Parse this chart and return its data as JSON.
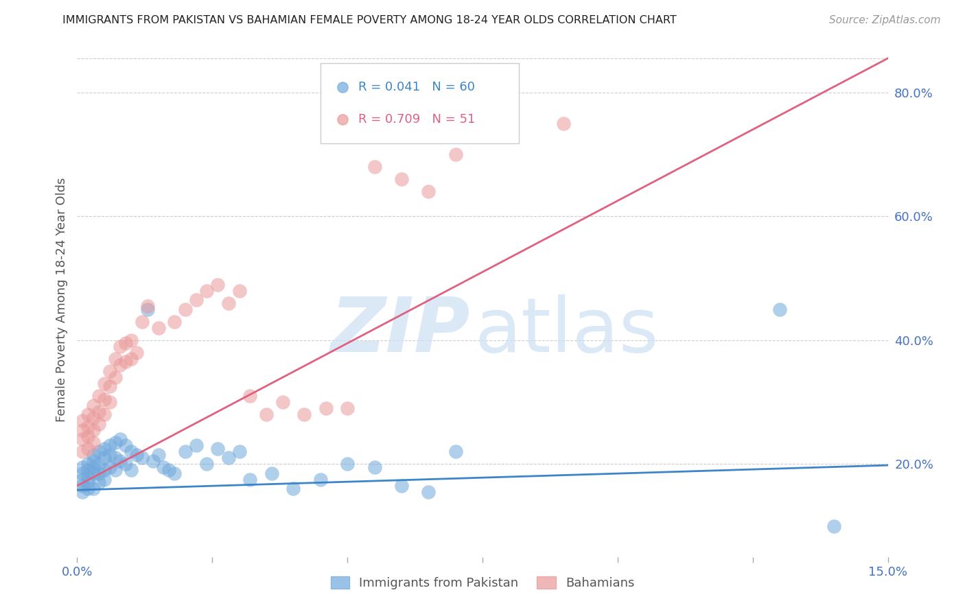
{
  "title": "IMMIGRANTS FROM PAKISTAN VS BAHAMIAN FEMALE POVERTY AMONG 18-24 YEAR OLDS CORRELATION CHART",
  "source": "Source: ZipAtlas.com",
  "ylabel": "Female Poverty Among 18-24 Year Olds",
  "xlabel_blue": "Immigrants from Pakistan",
  "xlabel_pink": "Bahamians",
  "y_ticks_right": [
    20.0,
    40.0,
    60.0,
    80.0
  ],
  "xlim": [
    0.0,
    0.15
  ],
  "ylim": [
    0.05,
    0.88
  ],
  "blue_R": 0.041,
  "blue_N": 60,
  "pink_R": 0.709,
  "pink_N": 51,
  "blue_color": "#6fa8dc",
  "pink_color": "#ea9999",
  "blue_line_color": "#3d85c8",
  "pink_line_color": "#e06080",
  "title_color": "#222222",
  "axis_label_color": "#555555",
  "tick_color": "#4472c4",
  "grid_color": "#cccccc",
  "blue_trend_x0": 0.0,
  "blue_trend_y0": 0.158,
  "blue_trend_x1": 0.15,
  "blue_trend_y1": 0.198,
  "pink_trend_x0": 0.0,
  "pink_trend_y0": 0.165,
  "pink_trend_x1": 0.15,
  "pink_trend_y1": 0.855,
  "blue_scatter_x": [
    0.001,
    0.001,
    0.001,
    0.001,
    0.001,
    0.002,
    0.002,
    0.002,
    0.002,
    0.002,
    0.003,
    0.003,
    0.003,
    0.003,
    0.003,
    0.004,
    0.004,
    0.004,
    0.004,
    0.005,
    0.005,
    0.005,
    0.005,
    0.006,
    0.006,
    0.006,
    0.007,
    0.007,
    0.007,
    0.008,
    0.008,
    0.009,
    0.009,
    0.01,
    0.01,
    0.011,
    0.012,
    0.013,
    0.014,
    0.015,
    0.016,
    0.017,
    0.018,
    0.02,
    0.022,
    0.024,
    0.026,
    0.028,
    0.03,
    0.032,
    0.036,
    0.04,
    0.045,
    0.05,
    0.055,
    0.06,
    0.065,
    0.07,
    0.13,
    0.14
  ],
  "blue_scatter_y": [
    0.195,
    0.185,
    0.175,
    0.165,
    0.155,
    0.2,
    0.19,
    0.18,
    0.17,
    0.16,
    0.215,
    0.205,
    0.195,
    0.185,
    0.16,
    0.22,
    0.2,
    0.185,
    0.17,
    0.225,
    0.21,
    0.19,
    0.175,
    0.23,
    0.215,
    0.195,
    0.235,
    0.21,
    0.19,
    0.24,
    0.205,
    0.23,
    0.2,
    0.22,
    0.19,
    0.215,
    0.21,
    0.45,
    0.205,
    0.215,
    0.195,
    0.19,
    0.185,
    0.22,
    0.23,
    0.2,
    0.225,
    0.21,
    0.22,
    0.175,
    0.185,
    0.16,
    0.175,
    0.2,
    0.195,
    0.165,
    0.155,
    0.22,
    0.45,
    0.1
  ],
  "pink_scatter_x": [
    0.001,
    0.001,
    0.001,
    0.001,
    0.002,
    0.002,
    0.002,
    0.002,
    0.003,
    0.003,
    0.003,
    0.003,
    0.004,
    0.004,
    0.004,
    0.005,
    0.005,
    0.005,
    0.006,
    0.006,
    0.006,
    0.007,
    0.007,
    0.008,
    0.008,
    0.009,
    0.009,
    0.01,
    0.01,
    0.011,
    0.012,
    0.013,
    0.015,
    0.018,
    0.02,
    0.022,
    0.024,
    0.026,
    0.028,
    0.03,
    0.032,
    0.035,
    0.038,
    0.042,
    0.046,
    0.05,
    0.055,
    0.06,
    0.065,
    0.07,
    0.09
  ],
  "pink_scatter_y": [
    0.27,
    0.255,
    0.24,
    0.22,
    0.28,
    0.26,
    0.245,
    0.225,
    0.295,
    0.275,
    0.255,
    0.235,
    0.31,
    0.285,
    0.265,
    0.33,
    0.305,
    0.28,
    0.35,
    0.325,
    0.3,
    0.37,
    0.34,
    0.39,
    0.36,
    0.395,
    0.365,
    0.4,
    0.37,
    0.38,
    0.43,
    0.455,
    0.42,
    0.43,
    0.45,
    0.465,
    0.48,
    0.49,
    0.46,
    0.48,
    0.31,
    0.28,
    0.3,
    0.28,
    0.29,
    0.29,
    0.68,
    0.66,
    0.64,
    0.7,
    0.75
  ]
}
